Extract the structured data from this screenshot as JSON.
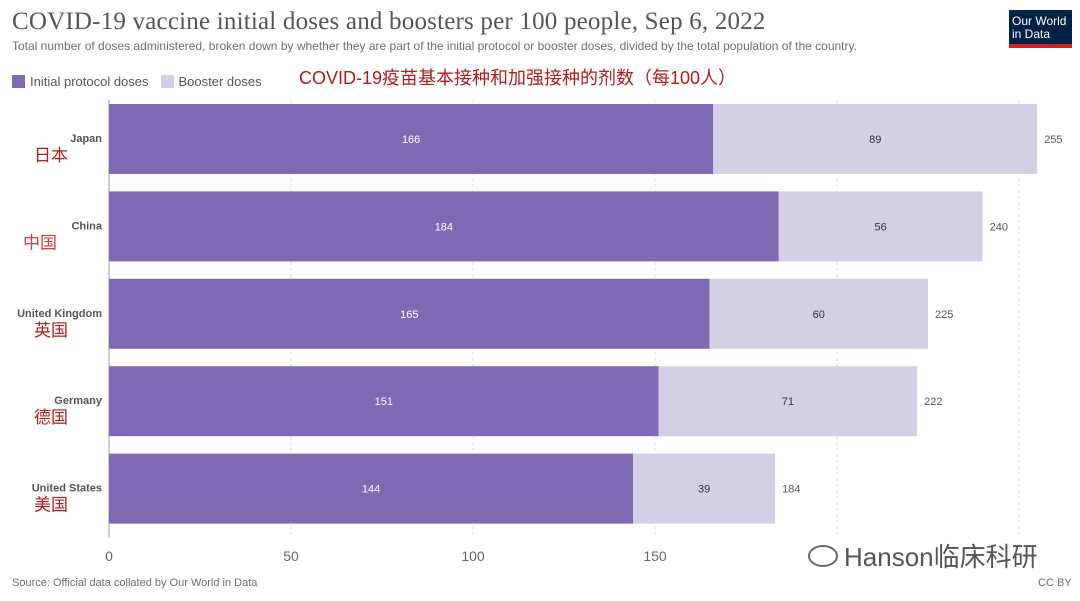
{
  "title": "COVID-19 vaccine initial doses and boosters per 100 people, Sep 6, 2022",
  "subtitle": "Total number of doses administered, broken down by whether they are part of the initial protocol or booster doses, divided by the total population of the country.",
  "logo": {
    "line1": "Our World",
    "line2": "in Data"
  },
  "annotation_cn_title": "COVID-19疫苗基本接种和加强接种的剂数（每100人）",
  "source": "Source: Official data collated by Our World in Data",
  "license": "CC BY",
  "watermark": "Hanson临床科研",
  "colors": {
    "initial": "#7f69b2",
    "booster": "#d3d0e6",
    "cn_label_dark": "#b01c1c",
    "cn_label_red": "#e0393e"
  },
  "chart_data": {
    "type": "bar",
    "orientation": "horizontal",
    "stacked": true,
    "categories": [
      "Japan",
      "China",
      "United Kingdom",
      "Germany",
      "United States"
    ],
    "category_labels_cn": [
      "日本",
      "中国",
      "英国",
      "德国",
      "美国"
    ],
    "series": [
      {
        "name": "Initial protocol doses",
        "values": [
          166,
          184,
          165,
          151,
          144
        ]
      },
      {
        "name": "Booster doses",
        "values": [
          89,
          56,
          60,
          71,
          39
        ]
      }
    ],
    "totals": [
      255,
      240,
      225,
      222,
      184
    ],
    "xlim": [
      0,
      255
    ],
    "x_ticks": [
      0,
      50,
      100,
      150
    ],
    "grid": true,
    "legend_position": "top-left"
  }
}
